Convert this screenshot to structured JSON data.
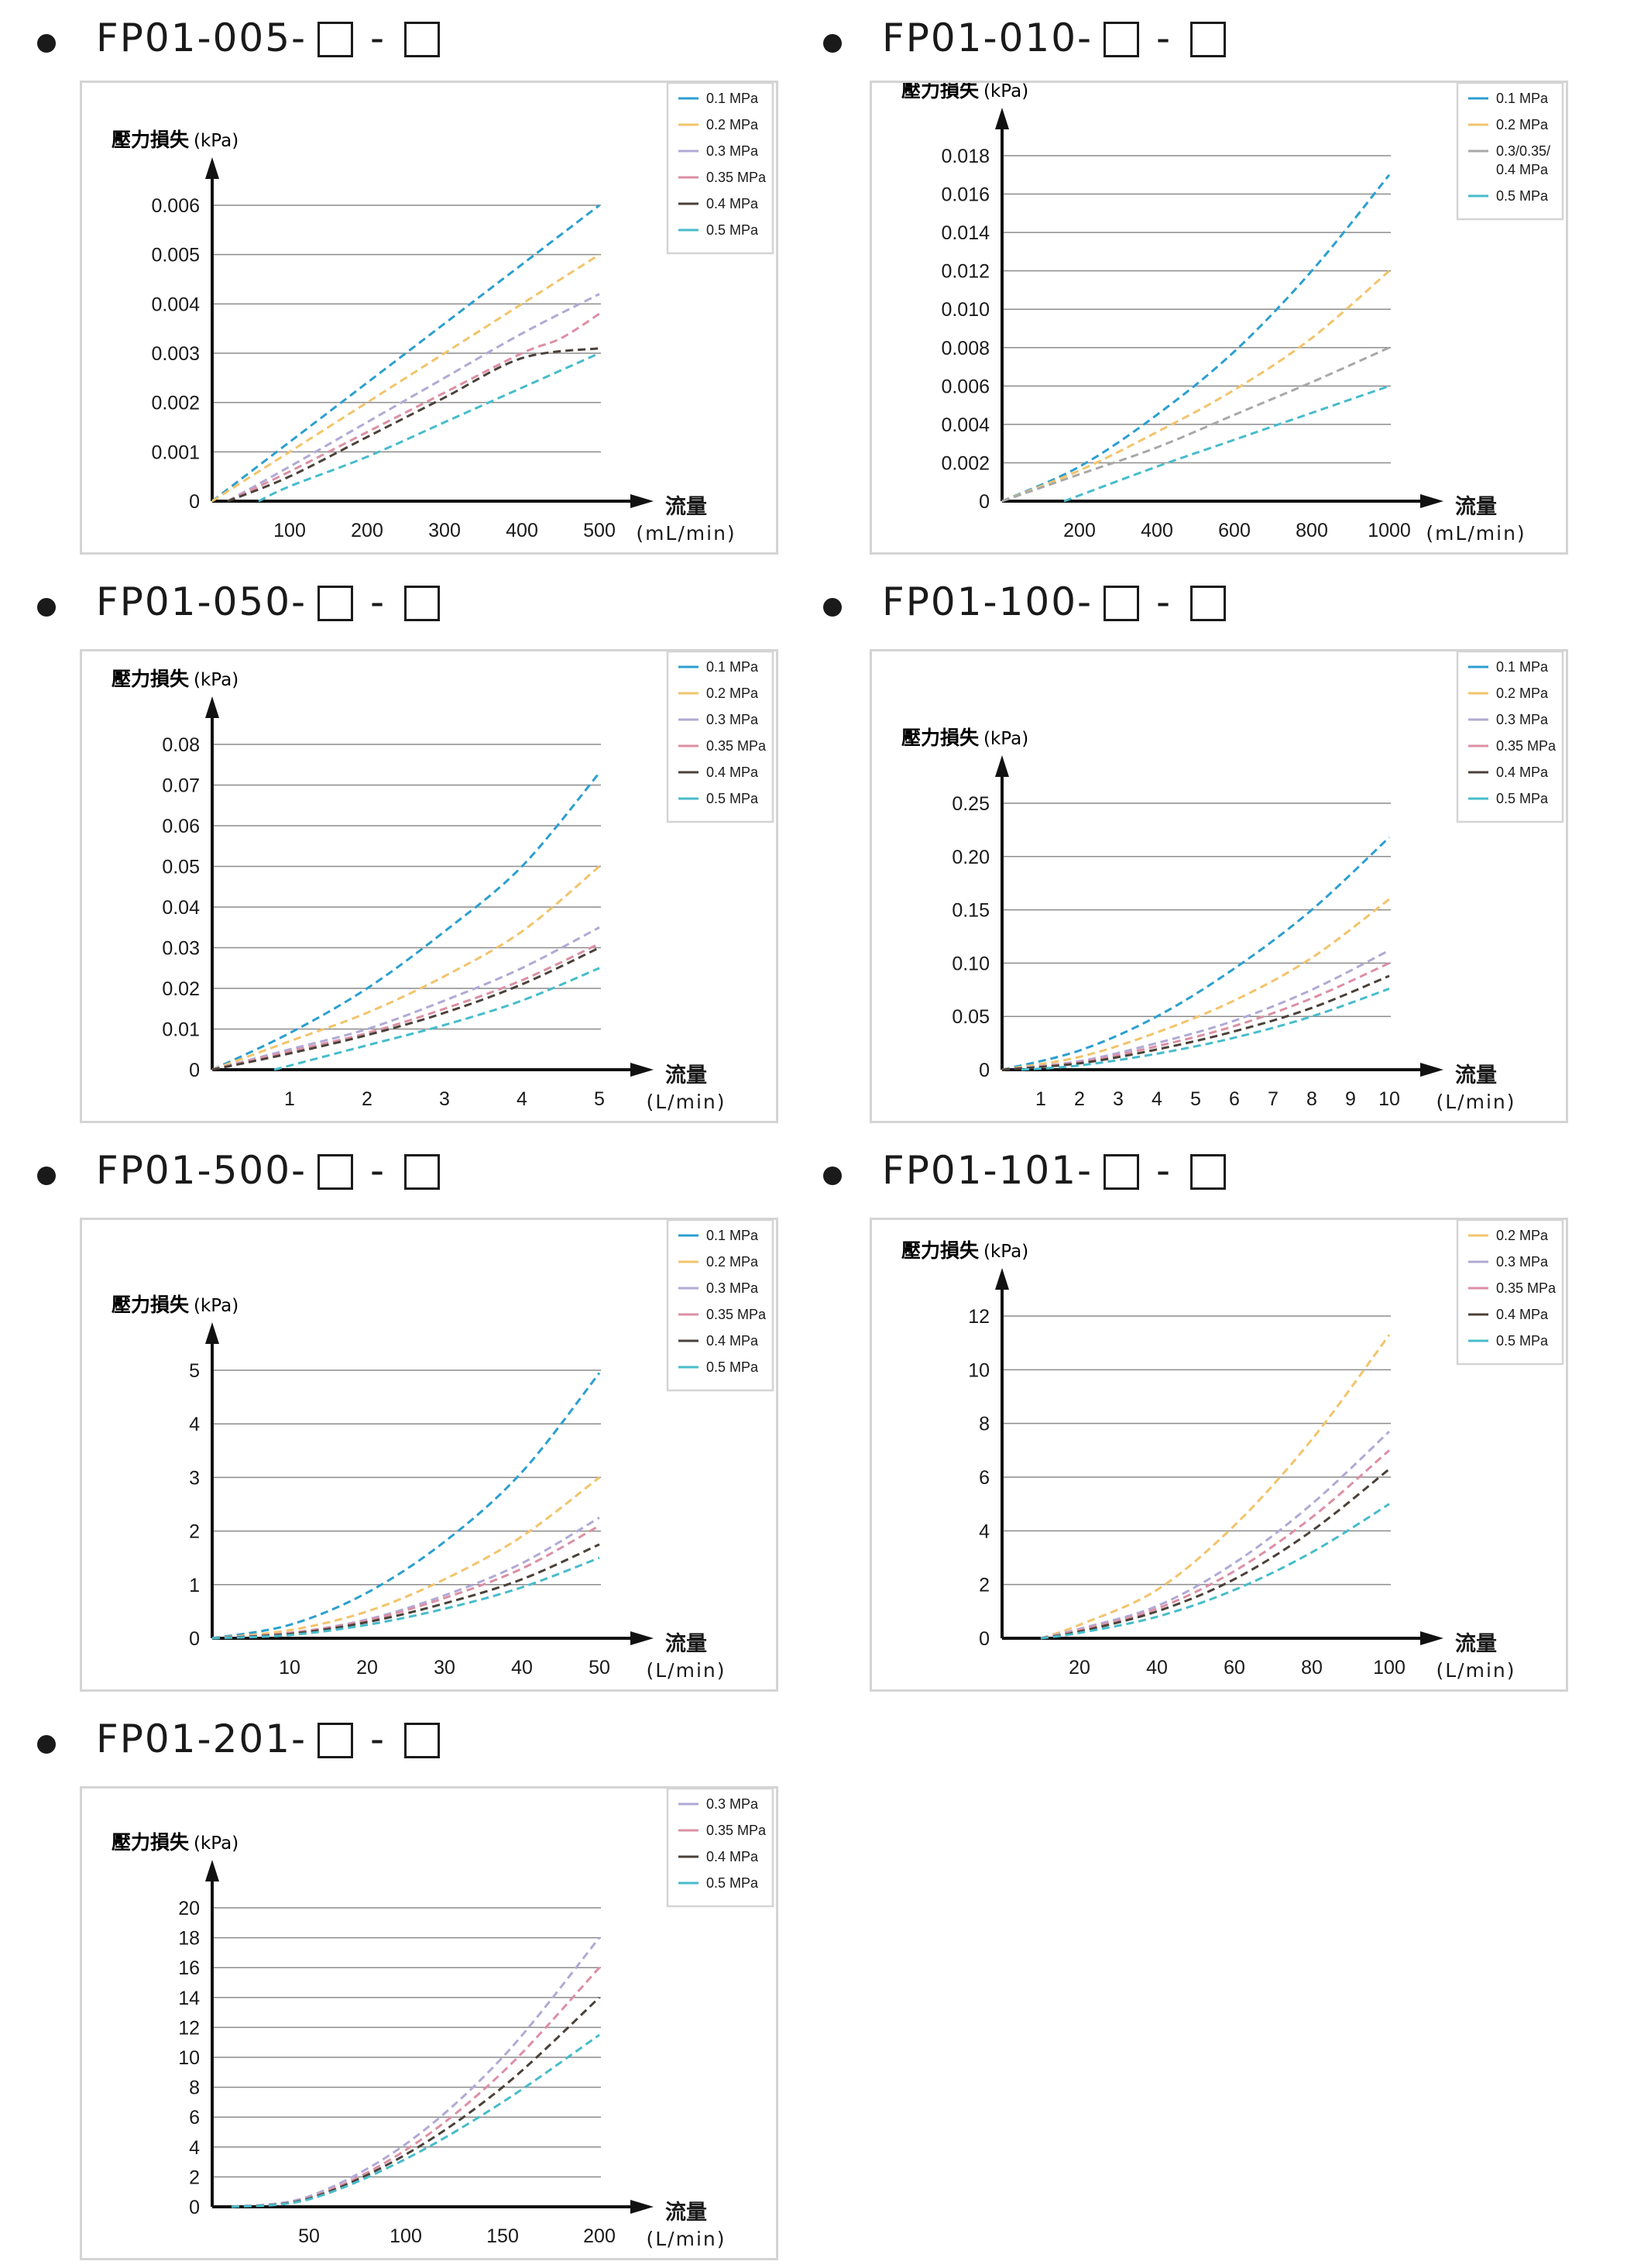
{
  "y_title": "壓力損失",
  "y_unit": "(kPa)",
  "x_title": "流量",
  "colors": {
    "0.1 MPa": "#2b9fd0",
    "0.2 MPa": "#f2c46b",
    "0.3 MPa": "#b1a9d6",
    "0.35 MPa": "#dc8fa4",
    "0.4 MPa": "#4a4139",
    "0.5 MPa": "#47bccb",
    "0.3/0.35/0.4 MPa": "#a8a8a8"
  },
  "chart_data": [
    {
      "id": "fp01-005",
      "model": "FP01-005-",
      "type": "line",
      "x_unit": "(mL/min)",
      "xticks": [
        100,
        200,
        300,
        400,
        500
      ],
      "xlim": [
        0,
        500
      ],
      "yticks": [
        "0",
        "0.001",
        "0.002",
        "0.003",
        "0.004",
        "0.005",
        "0.006"
      ],
      "ylim": [
        0,
        0.006
      ],
      "legend": [
        "0.1 MPa",
        "0.2 MPa",
        "0.3 MPa",
        "0.35 MPa",
        "0.4 MPa",
        "0.5 MPa"
      ],
      "series": [
        {
          "name": "0.1 MPa",
          "x": [
            0,
            100,
            200,
            300,
            400,
            500
          ],
          "y": [
            0,
            0.0012,
            0.0024,
            0.0036,
            0.0048,
            0.006
          ]
        },
        {
          "name": "0.2 MPa",
          "x": [
            0,
            100,
            200,
            300,
            400,
            500
          ],
          "y": [
            0,
            0.001,
            0.002,
            0.003,
            0.004,
            0.005
          ]
        },
        {
          "name": "0.3 MPa",
          "x": [
            20,
            100,
            200,
            300,
            400,
            500
          ],
          "y": [
            0,
            0.0007,
            0.0016,
            0.0025,
            0.0034,
            0.0042
          ]
        },
        {
          "name": "0.35 MPa",
          "x": [
            20,
            100,
            200,
            300,
            400,
            450,
            500
          ],
          "y": [
            0,
            0.0006,
            0.0014,
            0.0022,
            0.003,
            0.0033,
            0.0038
          ]
        },
        {
          "name": "0.4 MPa",
          "x": [
            20,
            100,
            200,
            300,
            400,
            500
          ],
          "y": [
            0,
            0.0005,
            0.0013,
            0.0021,
            0.0029,
            0.0031
          ]
        },
        {
          "name": "0.5 MPa",
          "x": [
            60,
            100,
            200,
            300,
            400,
            500
          ],
          "y": [
            0,
            0.0003,
            0.0009,
            0.0016,
            0.0023,
            0.003
          ]
        }
      ]
    },
    {
      "id": "fp01-010",
      "model": "FP01-010-",
      "type": "line",
      "x_unit": "(mL/min)",
      "xticks": [
        200,
        400,
        600,
        800,
        1000
      ],
      "xlim": [
        0,
        1000
      ],
      "yticks": [
        "0",
        "0.002",
        "0.004",
        "0.006",
        "0.008",
        "0.010",
        "0.012",
        "0.014",
        "0.016",
        "0.018"
      ],
      "ylim": [
        0,
        0.018
      ],
      "legend": [
        "0.1 MPa",
        "0.2 MPa",
        "0.3/0.35/0.4 MPa",
        "0.5 MPa"
      ],
      "legend_lines": [
        [
          "0.1 MPa"
        ],
        [
          "0.2 MPa"
        ],
        [
          "0.3/0.35/",
          "0.4 MPa"
        ],
        [
          "0.5 MPa"
        ]
      ],
      "series": [
        {
          "name": "0.1 MPa",
          "x": [
            0,
            200,
            400,
            600,
            800,
            1000
          ],
          "y": [
            0,
            0.0018,
            0.0045,
            0.0078,
            0.012,
            0.017
          ]
        },
        {
          "name": "0.2 MPa",
          "x": [
            0,
            200,
            400,
            600,
            800,
            1000
          ],
          "y": [
            0,
            0.0016,
            0.0036,
            0.0058,
            0.0085,
            0.012
          ]
        },
        {
          "name": "0.3/0.35/0.4 MPa",
          "x": [
            0,
            200,
            400,
            600,
            800,
            1000
          ],
          "y": [
            0,
            0.0014,
            0.0028,
            0.0045,
            0.0062,
            0.008
          ]
        },
        {
          "name": "0.5 MPa",
          "x": [
            160,
            400,
            600,
            800,
            1000
          ],
          "y": [
            0,
            0.0018,
            0.0032,
            0.0046,
            0.006
          ]
        }
      ]
    },
    {
      "id": "fp01-050",
      "model": "FP01-050-",
      "type": "line",
      "x_unit": "(L/min)",
      "xticks": [
        1,
        2,
        3,
        4,
        5
      ],
      "xlim": [
        0,
        5
      ],
      "yticks": [
        "0",
        "0.01",
        "0.02",
        "0.03",
        "0.04",
        "0.05",
        "0.06",
        "0.07",
        "0.08"
      ],
      "ylim": [
        0,
        0.08
      ],
      "legend": [
        "0.1 MPa",
        "0.2 MPa",
        "0.3 MPa",
        "0.35 MPa",
        "0.4 MPa",
        "0.5 MPa"
      ],
      "series": [
        {
          "name": "0.1 MPa",
          "x": [
            0,
            1,
            2,
            3,
            4,
            5
          ],
          "y": [
            0,
            0.009,
            0.02,
            0.034,
            0.05,
            0.073
          ]
        },
        {
          "name": "0.2 MPa",
          "x": [
            0,
            1,
            2,
            3,
            4,
            5
          ],
          "y": [
            0,
            0.007,
            0.014,
            0.023,
            0.034,
            0.05
          ]
        },
        {
          "name": "0.3 MPa",
          "x": [
            0,
            1,
            2,
            3,
            4,
            5
          ],
          "y": [
            0,
            0.005,
            0.01,
            0.017,
            0.025,
            0.035
          ]
        },
        {
          "name": "0.35 MPa",
          "x": [
            0,
            1,
            2,
            3,
            4,
            5
          ],
          "y": [
            0,
            0.0045,
            0.009,
            0.015,
            0.022,
            0.031
          ]
        },
        {
          "name": "0.4 MPa",
          "x": [
            0,
            1,
            2,
            3,
            4,
            5
          ],
          "y": [
            0,
            0.004,
            0.0085,
            0.014,
            0.021,
            0.03
          ]
        },
        {
          "name": "0.5 MPa",
          "x": [
            0.8,
            2,
            3,
            4,
            5
          ],
          "y": [
            0,
            0.006,
            0.011,
            0.017,
            0.025
          ]
        }
      ]
    },
    {
      "id": "fp01-100",
      "model": "FP01-100-",
      "type": "line",
      "x_unit": "(L/min)",
      "xticks": [
        1,
        2,
        3,
        4,
        5,
        6,
        7,
        8,
        9,
        10
      ],
      "xlim": [
        0,
        10
      ],
      "yticks": [
        "0",
        "0.05",
        "0.10",
        "0.15",
        "0.20",
        "0.25"
      ],
      "ylim": [
        0,
        0.25
      ],
      "legend": [
        "0.1 MPa",
        "0.2 MPa",
        "0.3 MPa",
        "0.35 MPa",
        "0.4 MPa",
        "0.5 MPa"
      ],
      "series": [
        {
          "name": "0.1 MPa",
          "x": [
            0,
            2,
            4,
            6,
            8,
            10
          ],
          "y": [
            0,
            0.018,
            0.05,
            0.095,
            0.15,
            0.218
          ]
        },
        {
          "name": "0.2 MPa",
          "x": [
            0,
            2,
            4,
            6,
            8,
            10
          ],
          "y": [
            0,
            0.012,
            0.035,
            0.065,
            0.105,
            0.16
          ]
        },
        {
          "name": "0.3 MPa",
          "x": [
            0,
            2,
            4,
            6,
            8,
            10
          ],
          "y": [
            0,
            0.008,
            0.025,
            0.046,
            0.075,
            0.112
          ]
        },
        {
          "name": "0.35 MPa",
          "x": [
            0,
            2,
            4,
            6,
            8,
            10
          ],
          "y": [
            0,
            0.007,
            0.022,
            0.041,
            0.067,
            0.1
          ]
        },
        {
          "name": "0.4 MPa",
          "x": [
            0,
            2,
            4,
            6,
            8,
            10
          ],
          "y": [
            0,
            0.006,
            0.019,
            0.036,
            0.058,
            0.088
          ]
        },
        {
          "name": "0.5 MPa",
          "x": [
            0.5,
            2,
            4,
            6,
            8,
            10
          ],
          "y": [
            0,
            0.004,
            0.015,
            0.03,
            0.05,
            0.076
          ]
        }
      ]
    },
    {
      "id": "fp01-500",
      "model": "FP01-500-",
      "type": "line",
      "x_unit": "(L/min)",
      "xticks": [
        10,
        20,
        30,
        40,
        50
      ],
      "xlim": [
        0,
        50
      ],
      "yticks": [
        "0",
        "1",
        "2",
        "3",
        "4",
        "5"
      ],
      "ylim": [
        0,
        5
      ],
      "legend": [
        "0.1 MPa",
        "0.2 MPa",
        "0.3 MPa",
        "0.35 MPa",
        "0.4 MPa",
        "0.5 MPa"
      ],
      "series": [
        {
          "name": "0.1 MPa",
          "x": [
            0,
            10,
            20,
            30,
            40,
            50
          ],
          "y": [
            0,
            0.25,
            0.85,
            1.8,
            3.1,
            4.95
          ]
        },
        {
          "name": "0.2 MPa",
          "x": [
            0,
            10,
            20,
            30,
            40,
            50
          ],
          "y": [
            0,
            0.15,
            0.5,
            1.1,
            1.9,
            3.0
          ]
        },
        {
          "name": "0.3 MPa",
          "x": [
            0,
            10,
            20,
            30,
            40,
            50
          ],
          "y": [
            0,
            0.1,
            0.35,
            0.8,
            1.4,
            2.25
          ]
        },
        {
          "name": "0.35 MPa",
          "x": [
            0,
            10,
            20,
            30,
            40,
            50
          ],
          "y": [
            0,
            0.1,
            0.33,
            0.75,
            1.3,
            2.1
          ]
        },
        {
          "name": "0.4 MPa",
          "x": [
            0,
            10,
            20,
            30,
            40,
            50
          ],
          "y": [
            0,
            0.08,
            0.3,
            0.65,
            1.1,
            1.75
          ]
        },
        {
          "name": "0.5 MPa",
          "x": [
            0,
            10,
            20,
            30,
            40,
            50
          ],
          "y": [
            0,
            0.06,
            0.25,
            0.55,
            0.95,
            1.5
          ]
        }
      ]
    },
    {
      "id": "fp01-101",
      "model": "FP01-101-",
      "type": "line",
      "x_unit": "(L/min)",
      "xticks": [
        20,
        40,
        60,
        80,
        100
      ],
      "xlim": [
        0,
        100
      ],
      "yticks": [
        "0",
        "2",
        "4",
        "6",
        "8",
        "10",
        "12"
      ],
      "ylim": [
        0,
        12
      ],
      "legend": [
        "0.2 MPa",
        "0.3 MPa",
        "0.35 MPa",
        "0.4 MPa",
        "0.5 MPa"
      ],
      "series": [
        {
          "name": "0.2 MPa",
          "x": [
            10,
            20,
            40,
            60,
            80,
            100
          ],
          "y": [
            0,
            0.5,
            1.8,
            4.2,
            7.4,
            11.3
          ]
        },
        {
          "name": "0.3 MPa",
          "x": [
            10,
            20,
            40,
            60,
            80,
            100
          ],
          "y": [
            0,
            0.35,
            1.2,
            2.8,
            5.0,
            7.7
          ]
        },
        {
          "name": "0.35 MPa",
          "x": [
            10,
            20,
            40,
            60,
            80,
            100
          ],
          "y": [
            0,
            0.3,
            1.1,
            2.5,
            4.5,
            7.0
          ]
        },
        {
          "name": "0.4 MPa",
          "x": [
            10,
            20,
            40,
            60,
            80,
            100
          ],
          "y": [
            0,
            0.25,
            1.0,
            2.2,
            4.0,
            6.3
          ]
        },
        {
          "name": "0.5 MPa",
          "x": [
            10,
            20,
            40,
            60,
            80,
            100
          ],
          "y": [
            0,
            0.2,
            0.8,
            1.8,
            3.2,
            5.0
          ]
        }
      ]
    },
    {
      "id": "fp01-201",
      "model": "FP01-201-",
      "type": "line",
      "x_unit": "(L/min)",
      "xticks": [
        50,
        100,
        150,
        200
      ],
      "xlim": [
        0,
        200
      ],
      "yticks": [
        "0",
        "2",
        "4",
        "6",
        "8",
        "10",
        "12",
        "14",
        "16",
        "18",
        "20"
      ],
      "ylim": [
        0,
        20
      ],
      "legend": [
        "0.3 MPa",
        "0.35 MPa",
        "0.4 MPa",
        "0.5 MPa"
      ],
      "series": [
        {
          "name": "0.3 MPa",
          "x": [
            10,
            50,
            100,
            150,
            200
          ],
          "y": [
            0,
            0.7,
            4.2,
            10.0,
            18.0
          ]
        },
        {
          "name": "0.35 MPa",
          "x": [
            10,
            50,
            100,
            150,
            200
          ],
          "y": [
            0,
            0.6,
            3.8,
            9.0,
            16.0
          ]
        },
        {
          "name": "0.4 MPa",
          "x": [
            10,
            50,
            100,
            150,
            200
          ],
          "y": [
            0,
            0.55,
            3.5,
            8.0,
            14.0
          ]
        },
        {
          "name": "0.5 MPa",
          "x": [
            10,
            50,
            100,
            150,
            200
          ],
          "y": [
            0,
            0.5,
            3.2,
            7.0,
            11.5
          ]
        }
      ]
    }
  ]
}
